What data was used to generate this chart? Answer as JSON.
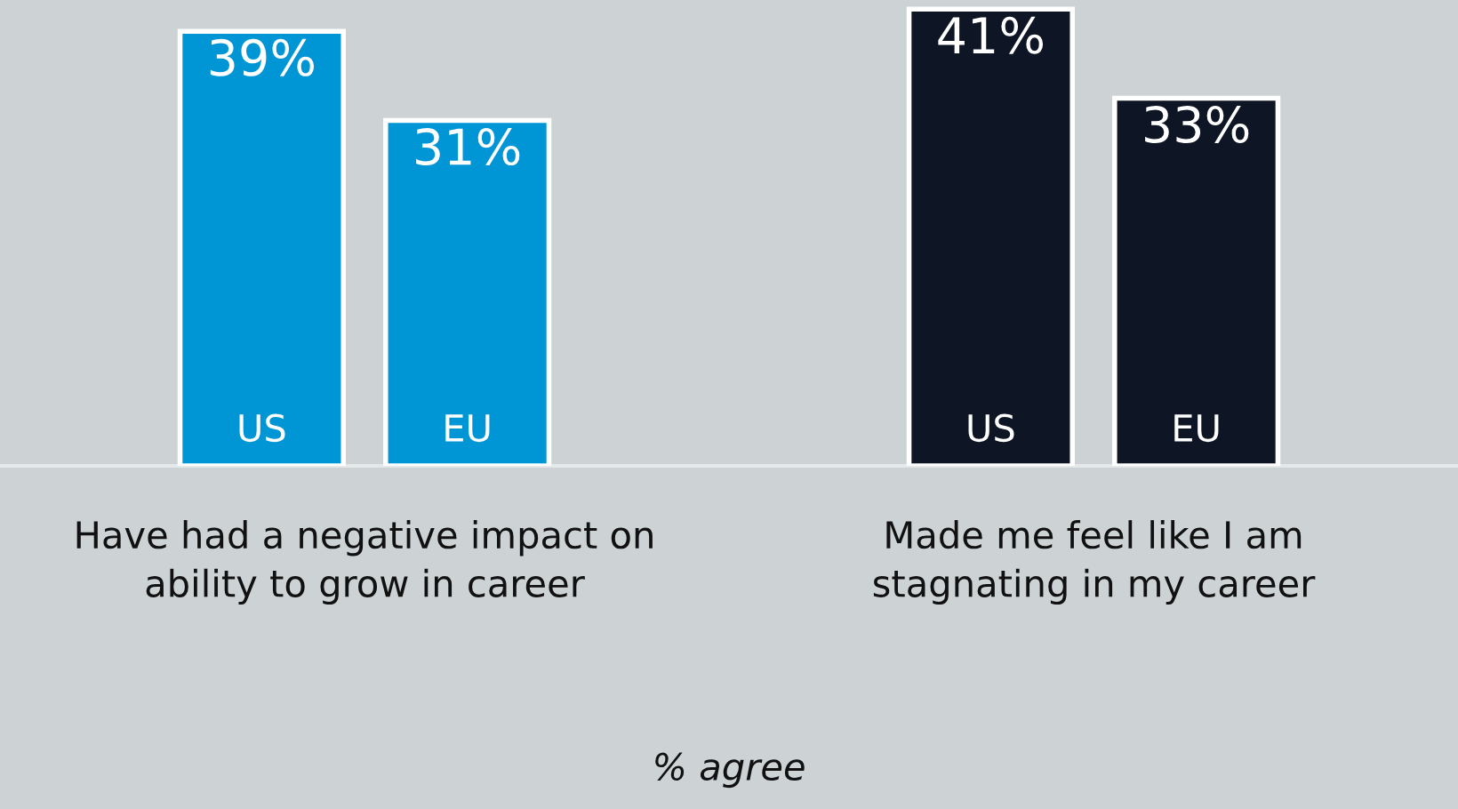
{
  "chart_data": {
    "type": "bar",
    "xlabel": "% agree",
    "categories": [
      "Have had a negative impact on\nability to grow in career",
      "Made me feel like I am\nstagnating in my career"
    ],
    "series": [
      {
        "name": "US",
        "colors": [
          "#0096d6",
          "#0e1525"
        ],
        "values": [
          39,
          41
        ],
        "value_labels": [
          "39%",
          "41%"
        ]
      },
      {
        "name": "EU",
        "colors": [
          "#0096d6",
          "#0e1525"
        ],
        "values": [
          31,
          33
        ],
        "value_labels": [
          "31%",
          "33%"
        ]
      }
    ],
    "legend": false,
    "grid": false
  }
}
